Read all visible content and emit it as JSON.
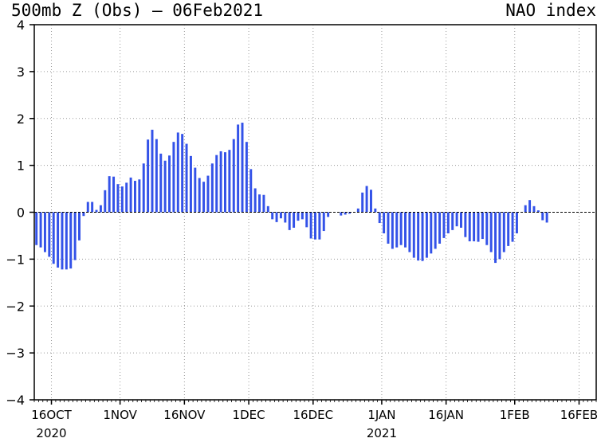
{
  "chart_data": {
    "type": "bar",
    "title": "500mb Z (Obs) — 06Feb2021",
    "subtitle": "NAO index",
    "x_start": "2020-10-12",
    "x_end": "2021-02-20",
    "ylim": [
      -4,
      4
    ],
    "yticks": [
      -4,
      -3,
      -2,
      -1,
      0,
      1,
      2,
      3,
      4
    ],
    "ytick_labels": [
      "−4",
      "−3",
      "−2",
      "−1",
      "0",
      "1",
      "2",
      "3",
      "4"
    ],
    "xticks": [
      {
        "date": "2020-10-16",
        "label": "16OCT",
        "sublabel": "2020"
      },
      {
        "date": "2020-11-01",
        "label": "1NOV",
        "sublabel": ""
      },
      {
        "date": "2020-11-16",
        "label": "16NOV",
        "sublabel": ""
      },
      {
        "date": "2020-12-01",
        "label": "1DEC",
        "sublabel": ""
      },
      {
        "date": "2020-12-16",
        "label": "16DEC",
        "sublabel": ""
      },
      {
        "date": "2021-01-01",
        "label": "1JAN",
        "sublabel": "2021"
      },
      {
        "date": "2021-01-16",
        "label": "16JAN",
        "sublabel": ""
      },
      {
        "date": "2021-02-01",
        "label": "1FEB",
        "sublabel": ""
      },
      {
        "date": "2021-02-16",
        "label": "16FEB",
        "sublabel": ""
      }
    ],
    "grid": true,
    "bar_color": "#3352e8",
    "series": [
      {
        "start_date": "2020-10-12",
        "values": [
          -0.7,
          -0.75,
          -0.85,
          -0.95,
          -1.1,
          -1.18,
          -1.22,
          -1.22,
          -1.2,
          -1.02,
          -0.6,
          -0.08,
          0.22,
          0.22,
          0.05,
          0.15,
          0.47,
          0.77,
          0.76,
          0.6,
          0.55,
          0.63,
          0.74,
          0.67,
          0.7,
          1.04,
          1.55,
          1.76,
          1.56,
          1.25,
          1.1,
          1.21,
          1.5,
          1.7,
          1.67,
          1.46,
          1.2,
          0.95,
          0.73,
          0.65,
          0.78,
          1.04,
          1.22,
          1.3,
          1.28,
          1.33,
          1.56,
          1.87,
          1.91,
          1.5,
          0.92,
          0.51,
          0.38,
          0.37,
          0.13,
          -0.15,
          -0.21,
          -0.13,
          -0.22,
          -0.38,
          -0.33,
          -0.18,
          -0.15,
          -0.32,
          -0.56,
          -0.58,
          -0.58,
          -0.4,
          -0.1,
          0.0,
          0.0,
          -0.07,
          -0.05,
          -0.03,
          0.0,
          0.08,
          0.42,
          0.56,
          0.48,
          0.08,
          -0.23,
          -0.45,
          -0.67,
          -0.78,
          -0.75,
          -0.7,
          -0.75,
          -0.85,
          -0.97,
          -1.03,
          -1.04,
          -0.97,
          -0.88,
          -0.78,
          -0.67,
          -0.55,
          -0.45,
          -0.38,
          -0.3,
          -0.33,
          -0.53,
          -0.62,
          -0.62,
          -0.63,
          -0.57,
          -0.7,
          -0.85,
          -1.08,
          -1.0,
          -0.85,
          -0.72,
          -0.63,
          -0.45,
          0.0,
          0.15,
          0.26,
          0.13,
          0.04,
          -0.17,
          -0.22
        ]
      }
    ]
  }
}
